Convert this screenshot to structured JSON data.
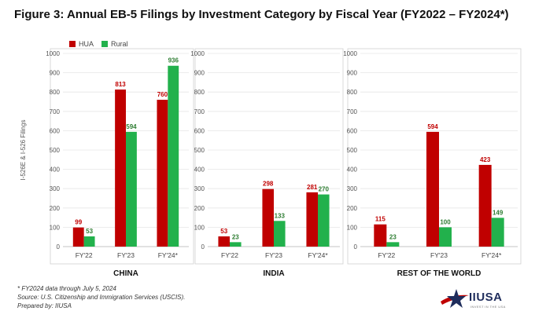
{
  "title": "Figure 3: Annual EB-5 Filings by Investment Category by Fiscal Year (FY2022 – FY2024*)",
  "colors": {
    "HUA": "#c00000",
    "Rural": "#22b14c",
    "hua_label": "#c00000",
    "rural_label": "#2e7d32"
  },
  "legend": {
    "hua": "HUA",
    "rural": "Rural"
  },
  "chart_data": [
    {
      "type": "bar",
      "title": "CHINA",
      "ylabel": "I-526E & I-526 Filings",
      "categories": [
        "FY'22",
        "FY'23",
        "FY'24*"
      ],
      "ylim": [
        0,
        1000
      ],
      "yticks": [
        0,
        100,
        200,
        300,
        400,
        500,
        600,
        700,
        800,
        900,
        1000
      ],
      "series": [
        {
          "name": "HUA",
          "values": [
            99,
            813,
            760
          ]
        },
        {
          "name": "Rural",
          "values": [
            53,
            594,
            936
          ]
        }
      ]
    },
    {
      "type": "bar",
      "title": "INDIA",
      "ylabel": "",
      "categories": [
        "FY'22",
        "FY'23",
        "FY'24*"
      ],
      "ylim": [
        0,
        1000
      ],
      "yticks": [
        0,
        100,
        200,
        300,
        400,
        500,
        600,
        700,
        800,
        900,
        1000
      ],
      "series": [
        {
          "name": "HUA",
          "values": [
            53,
            298,
            281
          ]
        },
        {
          "name": "Rural",
          "values": [
            23,
            133,
            270
          ]
        }
      ]
    },
    {
      "type": "bar",
      "title": "REST OF THE WORLD",
      "ylabel": "",
      "categories": [
        "FY'22",
        "FY'23",
        "FY'24*"
      ],
      "ylim": [
        0,
        1000
      ],
      "yticks": [
        0,
        100,
        200,
        300,
        400,
        500,
        600,
        700,
        800,
        900,
        1000
      ],
      "series": [
        {
          "name": "HUA",
          "values": [
            115,
            594,
            423
          ]
        },
        {
          "name": "Rural",
          "values": [
            23,
            100,
            149
          ]
        }
      ]
    }
  ],
  "footnotes": {
    "note": "* FY2024 data through July 5, 2024",
    "source": "Source: U.S. Citizenship and Immigration Services (USCIS).",
    "prepared": "Prepared by: IIUSA"
  },
  "logo": {
    "name": "IIUSA",
    "tagline": "INVEST IN THE USA"
  }
}
